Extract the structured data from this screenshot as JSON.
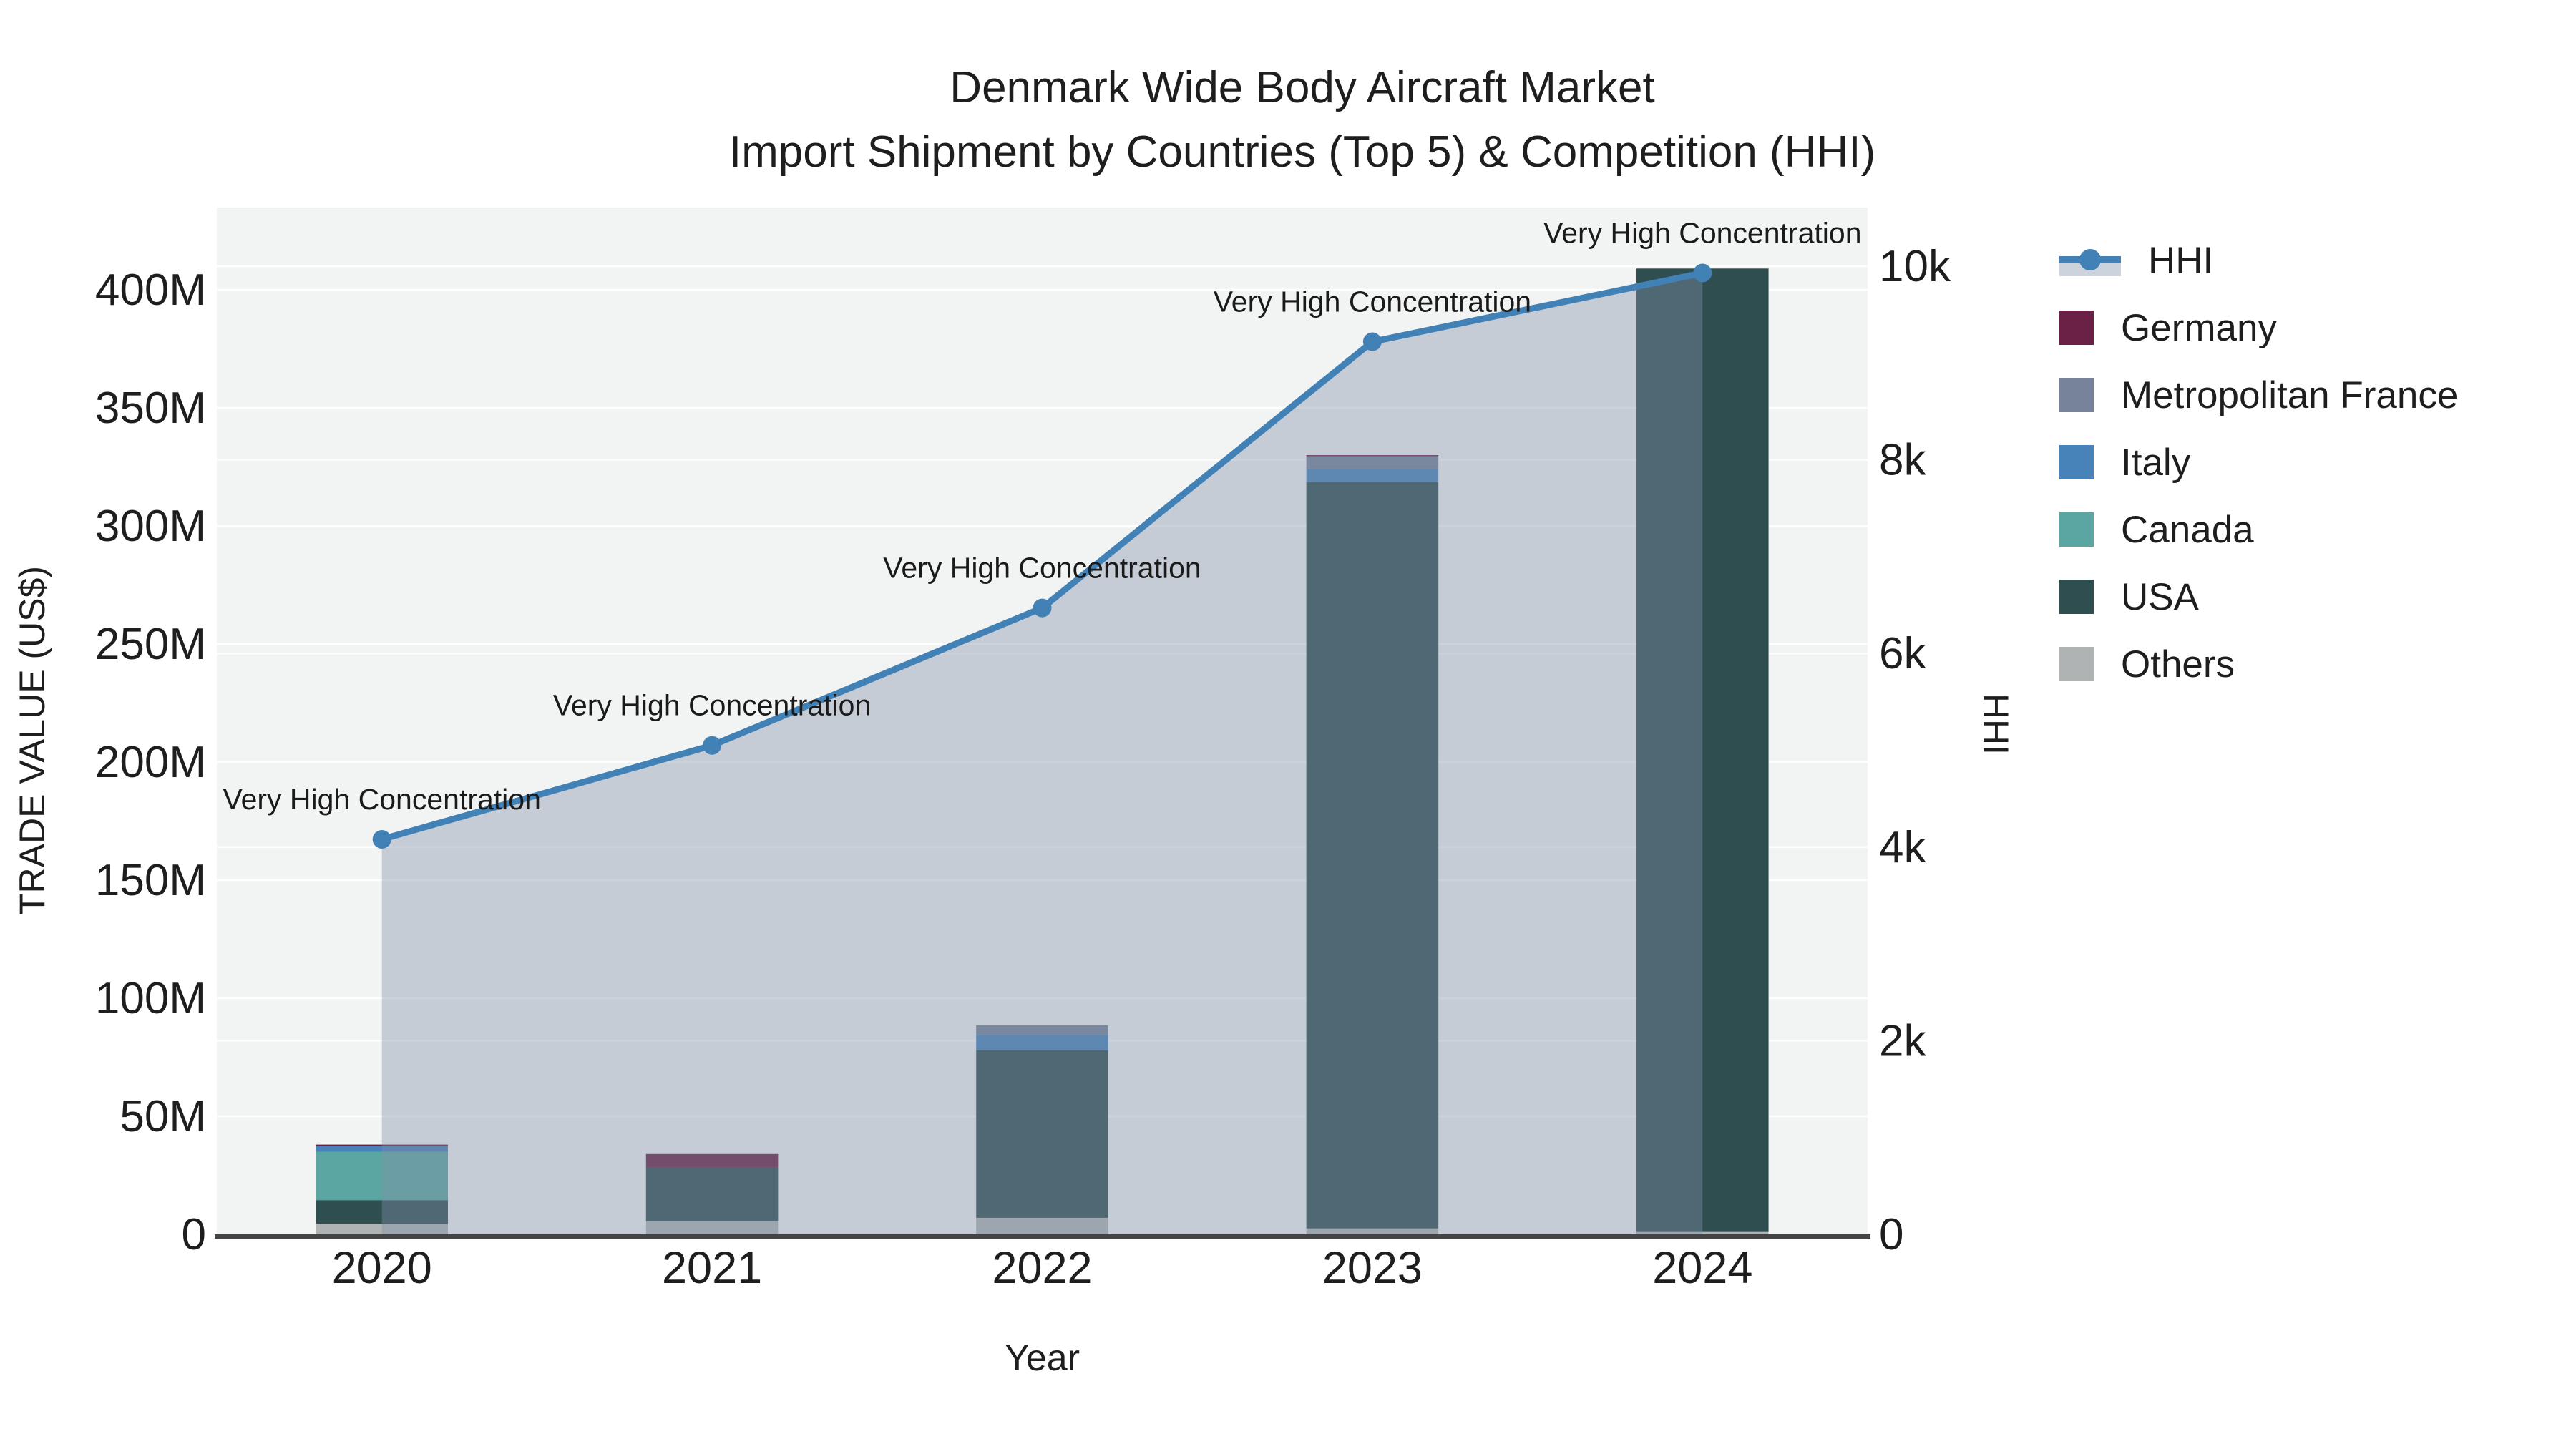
{
  "title": {
    "line1": "Denmark Wide Body Aircraft Market",
    "line2": "Import Shipment by Countries (Top 5) & Competition (HHI)"
  },
  "axes": {
    "x": {
      "title": "Year",
      "ticks": [
        "2020",
        "2021",
        "2022",
        "2023",
        "2024"
      ]
    },
    "left": {
      "title": "TRADE VALUE (US$)",
      "ticks": [
        "0",
        "50M",
        "100M",
        "150M",
        "200M",
        "250M",
        "300M",
        "350M",
        "400M"
      ],
      "tick_values_m": [
        0,
        50,
        100,
        150,
        200,
        250,
        300,
        350,
        400
      ]
    },
    "right": {
      "title": "HHI",
      "ticks": [
        "0",
        "2k",
        "4k",
        "6k",
        "8k",
        "10k"
      ],
      "tick_values": [
        0,
        2000,
        4000,
        6000,
        8000,
        10000
      ]
    }
  },
  "legend": {
    "items": [
      {
        "label": "HHI",
        "kind": "line",
        "color": "#4181b5",
        "band": "#ccd3dc"
      },
      {
        "label": "Germany",
        "kind": "swatch",
        "color": "#6b2145"
      },
      {
        "label": "Metropolitan France",
        "kind": "swatch",
        "color": "#76839a"
      },
      {
        "label": "Italy",
        "kind": "swatch",
        "color": "#4783b8"
      },
      {
        "label": "Canada",
        "kind": "swatch",
        "color": "#5ba5a2"
      },
      {
        "label": "USA",
        "kind": "swatch",
        "color": "#2e4e50"
      },
      {
        "label": "Others",
        "kind": "swatch",
        "color": "#b0b3b4"
      }
    ]
  },
  "chart_data": {
    "type": "bar+line",
    "title": "Denmark Wide Body Aircraft Market — Import Shipment by Countries (Top 5) & Competition (HHI)",
    "categories": [
      "2020",
      "2021",
      "2022",
      "2023",
      "2024"
    ],
    "xlabel": "Year",
    "ylabel_left": "TRADE VALUE (US$)",
    "ylabel_right": "HHI",
    "bar_unit": "million US$",
    "stack_order_bottom_to_top": [
      "Others",
      "USA",
      "Canada",
      "Italy",
      "Metropolitan France",
      "Germany"
    ],
    "series": [
      {
        "name": "Others",
        "color": "#b0b3b4",
        "values": [
          4.5,
          5.5,
          7.0,
          2.5,
          1.0
        ]
      },
      {
        "name": "USA",
        "color": "#2e4e50",
        "values": [
          10.0,
          23.0,
          71.0,
          316.0,
          408.0
        ]
      },
      {
        "name": "Canada",
        "color": "#5ba5a2",
        "values": [
          20.5,
          0,
          0,
          0,
          0
        ]
      },
      {
        "name": "Italy",
        "color": "#4783b8",
        "values": [
          2.4,
          0,
          6.5,
          5.5,
          0
        ]
      },
      {
        "name": "Metropolitan France",
        "color": "#76839a",
        "values": [
          0,
          0,
          4.0,
          5.5,
          0
        ]
      },
      {
        "name": "Germany",
        "color": "#6b2145",
        "values": [
          0.6,
          5.5,
          0,
          0.5,
          0
        ]
      }
    ],
    "bar_totals_m": [
      38.0,
      34.0,
      88.5,
      330.0,
      409.0
    ],
    "hhi": {
      "name": "HHI",
      "color": "#4181b5",
      "area_fill": "rgba(130,145,168,0.4)",
      "values": [
        4080,
        5050,
        6470,
        9220,
        9930
      ],
      "annotations": [
        "Very High Concentration",
        "Very High Concentration",
        "Very High Concentration",
        "Very High Concentration",
        "Very High Concentration"
      ]
    },
    "ylim_left_m": [
      0,
      435
    ],
    "ylim_right": [
      0,
      10600
    ],
    "grid": true,
    "plot_bg": "#f2f3f3",
    "grid_color": "rgba(255,255,255,0.9)",
    "axis_line_color": "#444444",
    "legend_position": "right"
  }
}
